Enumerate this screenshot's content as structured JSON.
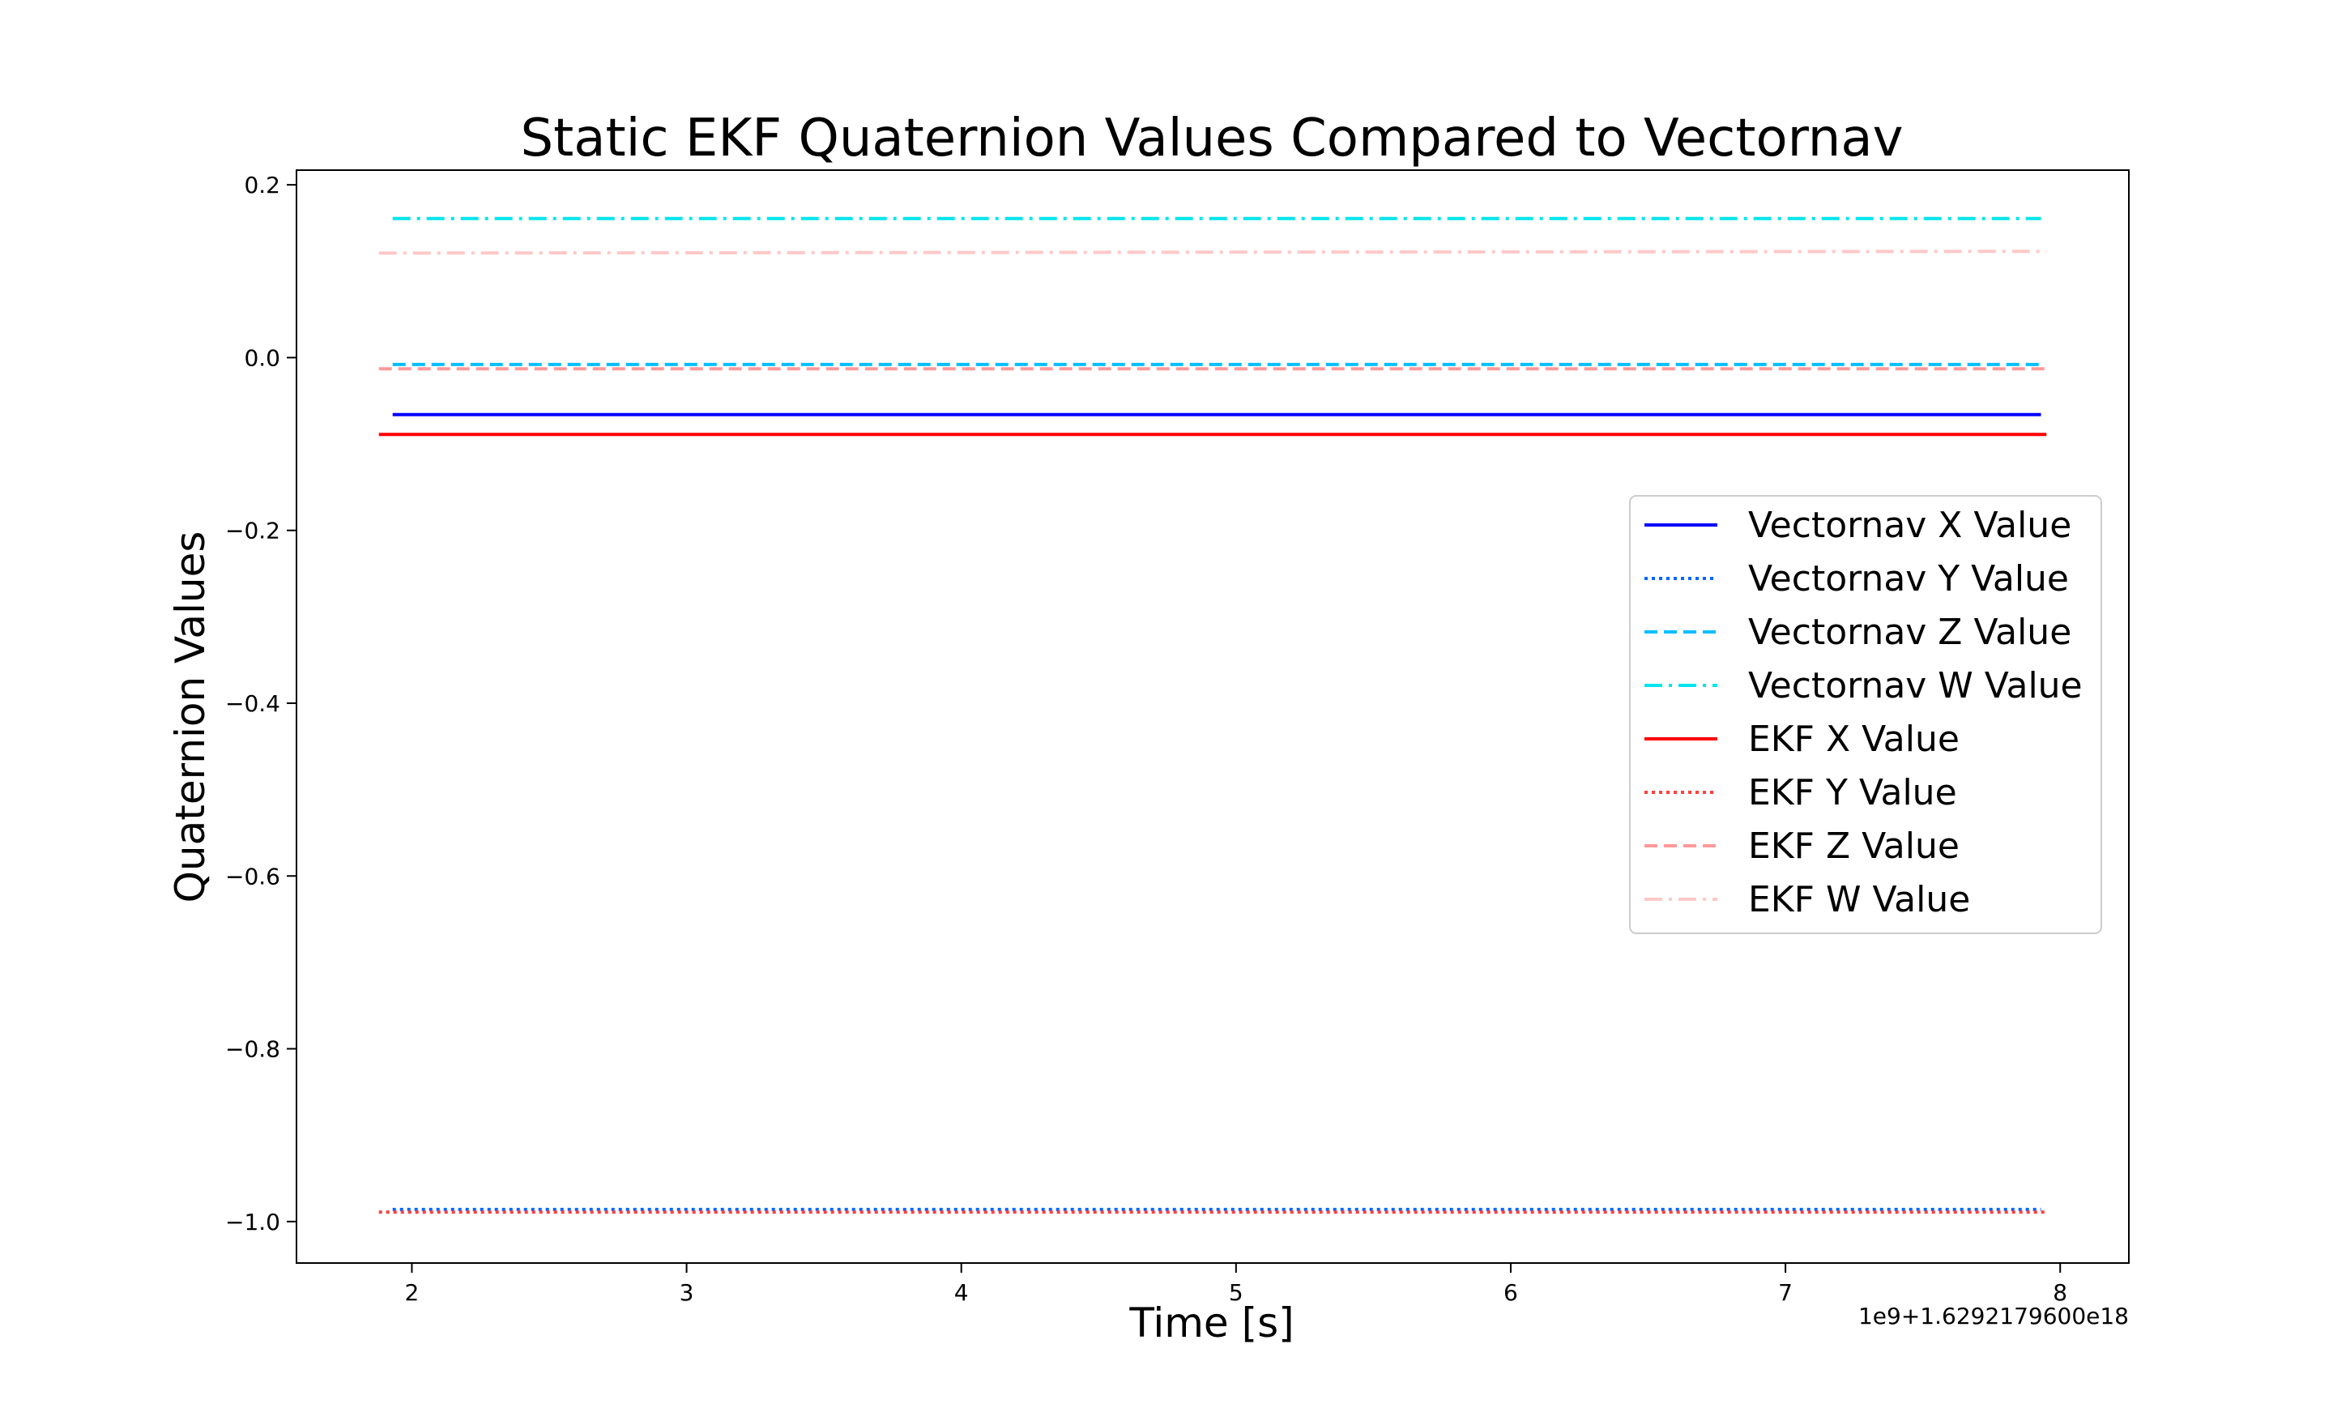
{
  "chart_data": {
    "type": "line",
    "title": "Static EKF Quaternion Values Compared to Vectornav",
    "xlabel": "Time [s]",
    "ylabel": "Quaternion Values",
    "x_offset_label": "1e9+1.6292179600e18",
    "xlim": [
      1.58,
      8.25
    ],
    "ylim": [
      -1.048,
      0.217
    ],
    "xticks": [
      2,
      3,
      4,
      5,
      6,
      7,
      8
    ],
    "xtick_labels": [
      "2",
      "3",
      "4",
      "5",
      "6",
      "7",
      "8"
    ],
    "yticks": [
      0.2,
      0.0,
      -0.2,
      -0.4,
      -0.6,
      -0.8,
      -1.0
    ],
    "ytick_labels": [
      "0.2",
      "0.0",
      "−0.2",
      "−0.4",
      "−0.6",
      "−0.8",
      "−1.0"
    ],
    "grid": false,
    "legend_position": "center-right",
    "series": [
      {
        "name": "Vectornav X Value",
        "color": "#0000ff",
        "linestyle": "solid",
        "x": [
          1.93,
          7.93
        ],
        "y": [
          -0.066,
          -0.066
        ]
      },
      {
        "name": "Vectornav Y Value",
        "color": "#0066ff",
        "linestyle": "dotted",
        "x": [
          1.93,
          7.93
        ],
        "y": [
          -0.986,
          -0.986
        ]
      },
      {
        "name": "Vectornav Z Value",
        "color": "#00bfff",
        "linestyle": "dashed",
        "x": [
          1.93,
          7.93
        ],
        "y": [
          -0.008,
          -0.008
        ]
      },
      {
        "name": "Vectornav W Value",
        "color": "#00e5ee",
        "linestyle": "dashdot",
        "x": [
          1.93,
          7.93
        ],
        "y": [
          0.161,
          0.161
        ]
      },
      {
        "name": "EKF X Value",
        "color": "#ff0000",
        "linestyle": "solid",
        "x": [
          1.88,
          7.95
        ],
        "y": [
          -0.089,
          -0.089
        ]
      },
      {
        "name": "EKF Y Value",
        "color": "#ff4040",
        "linestyle": "dotted",
        "x": [
          1.88,
          7.95
        ],
        "y": [
          -0.989,
          -0.989
        ]
      },
      {
        "name": "EKF Z Value",
        "color": "#ff9999",
        "linestyle": "dashed",
        "x": [
          1.88,
          7.95
        ],
        "y": [
          -0.013,
          -0.013
        ]
      },
      {
        "name": "EKF W Value",
        "color": "#ffc8c8",
        "linestyle": "dashdot",
        "x": [
          1.88,
          7.95
        ],
        "y": [
          0.121,
          0.123
        ]
      }
    ]
  }
}
